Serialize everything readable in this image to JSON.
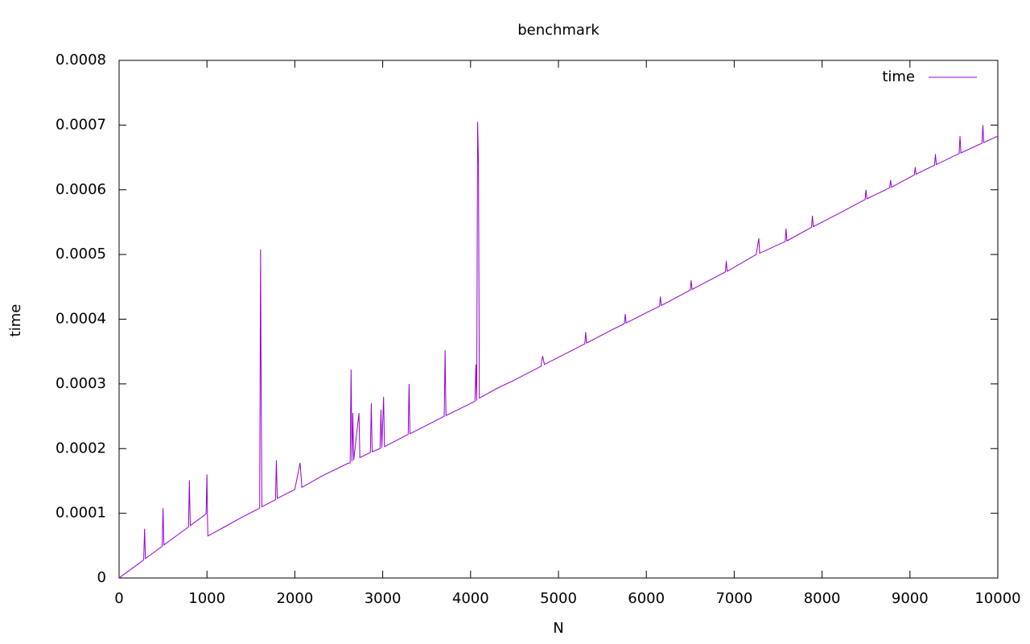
{
  "chart_data": {
    "type": "line",
    "title": "benchmark",
    "x_label": "N",
    "y_label": "time",
    "x": [
      0,
      100,
      200,
      280,
      290,
      300,
      400,
      490,
      500,
      510,
      600,
      700,
      790,
      800,
      810,
      900,
      990,
      1000,
      1005,
      1010,
      1200,
      1400,
      1600,
      1610,
      1615,
      1625,
      1780,
      1790,
      1800,
      2000,
      2060,
      2080,
      2300,
      2600,
      2630,
      2640,
      2650,
      2660,
      2670,
      2730,
      2740,
      2860,
      2870,
      2880,
      2970,
      2980,
      2990,
      3010,
      3020,
      3290,
      3300,
      3310,
      3500,
      3700,
      3710,
      3720,
      3900,
      4050,
      4060,
      4070,
      4080,
      4090,
      4100,
      4300,
      4500,
      4800,
      4820,
      4840,
      5100,
      5300,
      5310,
      5320,
      5600,
      5750,
      5760,
      5770,
      6000,
      6150,
      6160,
      6170,
      6500,
      6510,
      6520,
      6900,
      6910,
      6920,
      7250,
      7280,
      7290,
      7580,
      7590,
      7600,
      7880,
      7890,
      7900,
      8200,
      8490,
      8500,
      8510,
      8770,
      8780,
      8790,
      9050,
      9060,
      9070,
      9280,
      9290,
      9300,
      9560,
      9570,
      9580,
      9820,
      9830,
      9840,
      10000
    ],
    "series": [
      {
        "name": "time",
        "color": "#9400d3",
        "values": [
          0,
          1e-05,
          2e-05,
          2.8e-05,
          7.6e-05,
          3e-05,
          4e-05,
          4.9e-05,
          0.000108,
          5.1e-05,
          6e-05,
          7e-05,
          7.9e-05,
          0.000151,
          8.1e-05,
          9e-05,
          9.9e-05,
          0.00016,
          0.0001,
          6.5e-05,
          7.9e-05,
          9.4e-05,
          0.000108,
          0.000508,
          0.00034,
          0.00011,
          0.000121,
          0.000182,
          0.000123,
          0.000137,
          0.000178,
          0.00014,
          0.000157,
          0.000177,
          0.000178,
          0.000322,
          0.00018,
          0.000255,
          0.000182,
          0.000255,
          0.000186,
          0.000194,
          0.00027,
          0.000195,
          0.0002,
          0.00026,
          0.000201,
          0.00028,
          0.000203,
          0.000222,
          0.0003,
          0.000223,
          0.000236,
          0.00025,
          0.000352,
          0.000251,
          0.000263,
          0.000273,
          0.00033,
          0.000274,
          0.000705,
          0.00064,
          0.000278,
          0.000293,
          0.000306,
          0.000327,
          0.000343,
          0.00033,
          0.000348,
          0.000362,
          0.00038,
          0.000363,
          0.000383,
          0.000393,
          0.000408,
          0.000394,
          0.00041,
          0.00042,
          0.000435,
          0.000421,
          0.000445,
          0.00046,
          0.000446,
          0.000473,
          0.00049,
          0.000474,
          0.0005,
          0.000525,
          0.000502,
          0.00052,
          0.00054,
          0.000521,
          0.000542,
          0.00056,
          0.000543,
          0.000564,
          0.000585,
          0.0006,
          0.000586,
          0.000603,
          0.000615,
          0.000604,
          0.000623,
          0.000635,
          0.000624,
          0.000638,
          0.000655,
          0.000639,
          0.000656,
          0.000683,
          0.000657,
          0.000672,
          0.0007,
          0.000673,
          0.000683
        ]
      }
    ],
    "xlim": [
      0,
      10000
    ],
    "xticks": [
      0,
      1000,
      2000,
      3000,
      4000,
      5000,
      6000,
      7000,
      8000,
      9000,
      10000
    ],
    "ylim": [
      0,
      0.0008
    ],
    "yticks": [
      0,
      0.0001,
      0.0002,
      0.0003,
      0.0004,
      0.0005,
      0.0006,
      0.0007,
      0.0008
    ],
    "legend": "top-right"
  }
}
